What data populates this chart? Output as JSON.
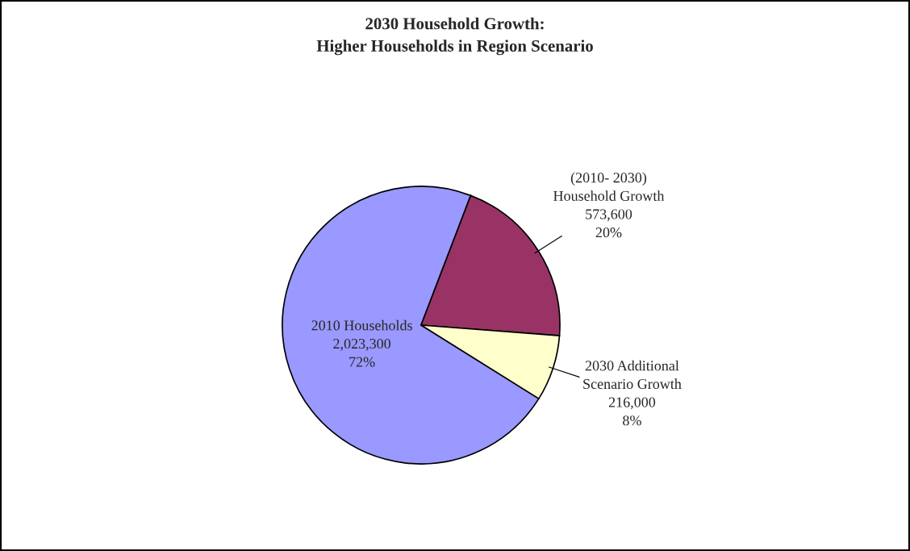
{
  "chart_data": {
    "type": "pie",
    "title": "2030 Household Growth:\nHigher Households in Region Scenario",
    "categories": [
      "2010 Households",
      "(2010- 2030)\nHousehold Growth",
      "2030 Additional\nScenario Growth"
    ],
    "values": [
      2023300,
      573600,
      216000
    ],
    "value_labels": [
      "2,023,300\n72%",
      "573,600\n20%",
      "216,000\n8%"
    ],
    "colors": [
      "#9999ff",
      "#993366",
      "#ffffcc"
    ],
    "legend": false
  }
}
